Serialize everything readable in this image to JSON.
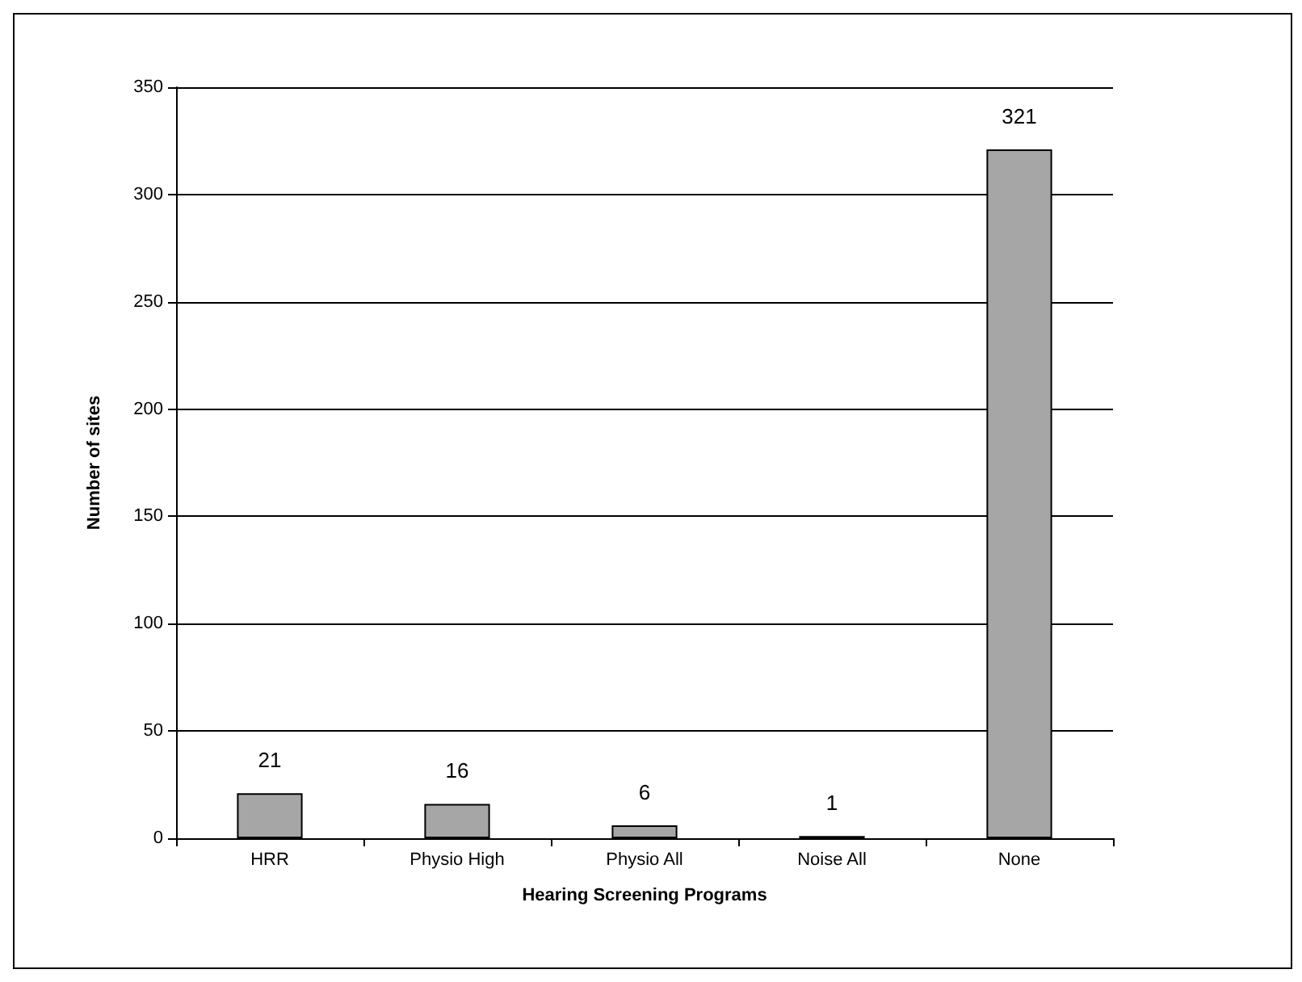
{
  "chart_data": {
    "type": "bar",
    "xlabel": "Hearing Screening Programs",
    "ylabel": "Number of sites",
    "categories": [
      "HRR",
      "Physio High",
      "Physio All",
      "Noise All",
      "None"
    ],
    "values": [
      21,
      16,
      6,
      1,
      321
    ],
    "color": "#a6a6a6",
    "ylim": [
      0,
      350
    ],
    "yticks": [
      0,
      50,
      100,
      150,
      200,
      250,
      300,
      350
    ],
    "grid": "y",
    "data_labels": true
  }
}
